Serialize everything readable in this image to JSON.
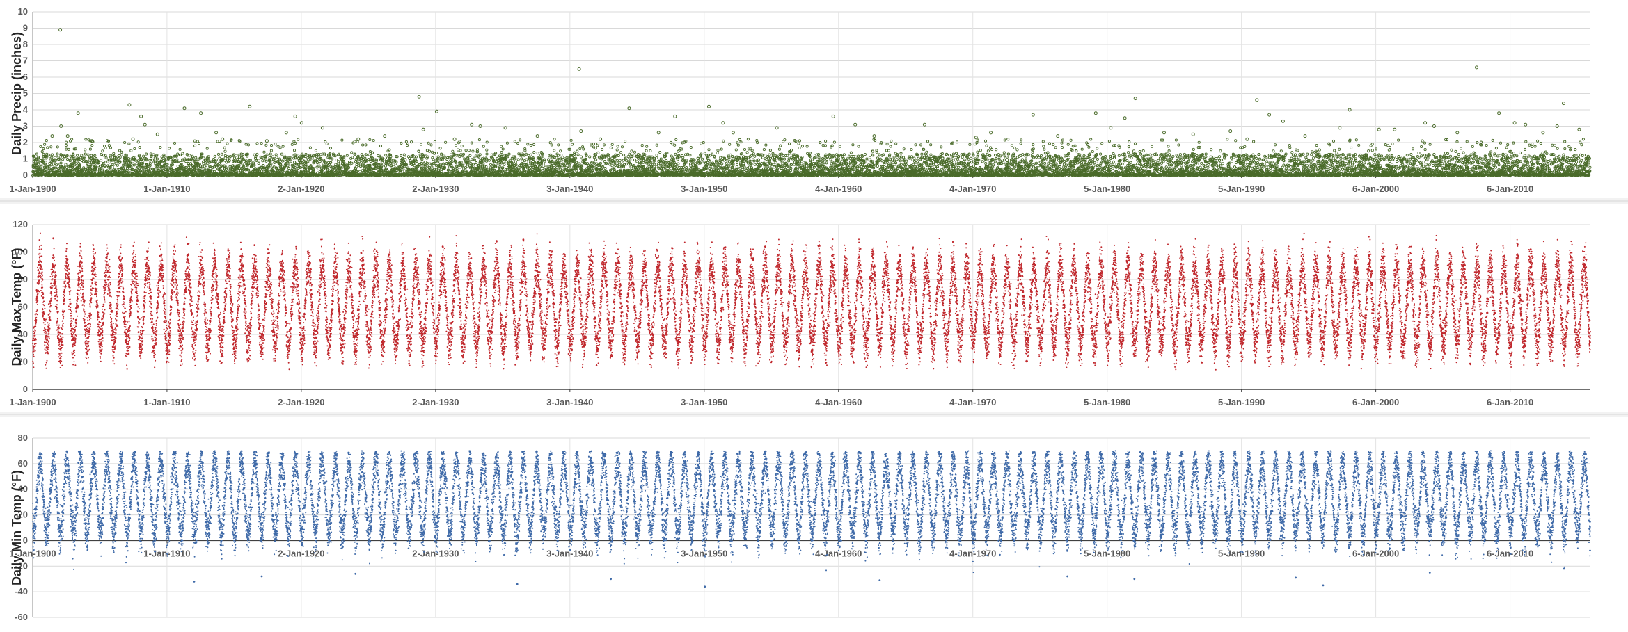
{
  "chart_data": [
    {
      "type": "scatter",
      "ylabel": "Daily Precip (inches)",
      "ylim": [
        0,
        10
      ],
      "yticks": [
        0,
        1,
        2,
        3,
        4,
        5,
        6,
        7,
        8,
        9,
        10
      ],
      "x_tick_labels": [
        "1-Jan-1900",
        "1-Jan-1910",
        "2-Jan-1920",
        "2-Jan-1930",
        "3-Jan-1940",
        "3-Jan-1950",
        "4-Jan-1960",
        "4-Jan-1970",
        "5-Jan-1980",
        "5-Jan-1990",
        "6-Jan-2000",
        "6-Jan-2010"
      ],
      "x_tick_dates": [
        "1900-01-01",
        "1910-01-01",
        "1920-01-02",
        "1930-01-02",
        "1940-01-03",
        "1950-01-03",
        "1960-01-04",
        "1970-01-04",
        "1980-01-05",
        "1990-01-05",
        "2000-01-06",
        "2010-01-06"
      ],
      "xlim": [
        "1900-01-01",
        "2015-12-31"
      ],
      "x_axis_at": 0,
      "grid": true,
      "marker_color": "#4a6b2a",
      "marker": "open-circle",
      "series": [
        {
          "points": [
            [
              "1902-01-20",
              8.9
            ],
            [
              "1901-06-15",
              2.4
            ],
            [
              "1902-02-10",
              3.0
            ],
            [
              "1902-08-10",
              2.4
            ],
            [
              "1903-05-20",
              3.8
            ],
            [
              "1904-06-01",
              2.1
            ],
            [
              "1907-03-15",
              4.3
            ],
            [
              "1907-06-20",
              2.2
            ],
            [
              "1908-01-25",
              3.6
            ],
            [
              "1908-05-10",
              3.1
            ],
            [
              "1909-04-18",
              2.5
            ],
            [
              "1911-04-20",
              4.1
            ],
            [
              "1912-07-10",
              3.8
            ],
            [
              "1913-09-01",
              2.6
            ],
            [
              "1914-02-20",
              2.2
            ],
            [
              "1916-03-01",
              4.2
            ],
            [
              "1917-06-10",
              2.1
            ],
            [
              "1918-11-20",
              2.6
            ],
            [
              "1919-07-20",
              3.6
            ],
            [
              "1920-01-10",
              3.2
            ],
            [
              "1921-08-01",
              2.9
            ],
            [
              "1924-04-01",
              2.2
            ],
            [
              "1926-03-20",
              2.4
            ],
            [
              "1928-10-10",
              4.8
            ],
            [
              "1929-02-01",
              2.8
            ],
            [
              "1930-02-01",
              3.9
            ],
            [
              "1931-06-01",
              2.2
            ],
            [
              "1932-09-10",
              3.1
            ],
            [
              "1933-05-01",
              3.0
            ],
            [
              "1935-03-15",
              2.9
            ],
            [
              "1937-08-01",
              2.4
            ],
            [
              "1940-09-10",
              6.5
            ],
            [
              "1940-11-01",
              2.7
            ],
            [
              "1942-04-10",
              2.2
            ],
            [
              "1944-06-01",
              4.1
            ],
            [
              "1946-08-10",
              2.6
            ],
            [
              "1947-11-01",
              3.6
            ],
            [
              "1950-05-10",
              4.2
            ],
            [
              "1951-06-01",
              3.2
            ],
            [
              "1952-03-01",
              2.6
            ],
            [
              "1955-06-01",
              2.9
            ],
            [
              "1959-08-15",
              3.6
            ],
            [
              "1961-04-01",
              3.1
            ],
            [
              "1962-09-01",
              2.4
            ],
            [
              "1966-06-01",
              3.1
            ],
            [
              "1970-04-01",
              2.3
            ],
            [
              "1971-05-10",
              2.6
            ],
            [
              "1974-07-01",
              3.7
            ],
            [
              "1976-05-01",
              2.4
            ],
            [
              "1979-03-01",
              3.8
            ],
            [
              "1980-04-10",
              2.9
            ],
            [
              "1981-05-01",
              3.5
            ],
            [
              "1982-02-10",
              4.7
            ],
            [
              "1984-04-01",
              2.6
            ],
            [
              "1986-06-01",
              2.5
            ],
            [
              "1989-03-10",
              2.7
            ],
            [
              "1990-06-10",
              2.2
            ],
            [
              "1991-03-01",
              4.6
            ],
            [
              "1992-02-01",
              3.7
            ],
            [
              "1993-02-10",
              3.3
            ],
            [
              "1994-10-01",
              2.4
            ],
            [
              "1997-05-01",
              2.9
            ],
            [
              "1998-01-25",
              4.0
            ],
            [
              "2000-04-01",
              2.8
            ],
            [
              "2001-06-01",
              2.8
            ],
            [
              "2003-09-10",
              3.2
            ],
            [
              "2004-05-10",
              3.0
            ],
            [
              "2006-02-01",
              2.6
            ],
            [
              "2007-07-10",
              6.6
            ],
            [
              "2009-03-10",
              3.8
            ],
            [
              "2010-05-10",
              3.2
            ],
            [
              "2011-03-01",
              3.1
            ],
            [
              "2012-06-20",
              2.6
            ],
            [
              "2013-07-10",
              3.0
            ],
            [
              "2014-01-01",
              4.4
            ],
            [
              "2015-03-01",
              2.8
            ]
          ]
        }
      ]
    },
    {
      "type": "scatter",
      "ylabel": "Daily Max Temp (°F)",
      "ylim": [
        0,
        120
      ],
      "yticks": [
        0,
        20,
        40,
        60,
        80,
        100,
        120
      ],
      "x_tick_labels": [
        "1-Jan-1900",
        "1-Jan-1910",
        "2-Jan-1920",
        "2-Jan-1930",
        "3-Jan-1940",
        "3-Jan-1950",
        "4-Jan-1960",
        "4-Jan-1970",
        "5-Jan-1980",
        "5-Jan-1990",
        "6-Jan-2000",
        "6-Jan-2010"
      ],
      "x_tick_dates": [
        "1900-01-01",
        "1910-01-01",
        "1920-01-02",
        "1930-01-02",
        "1940-01-03",
        "1950-01-03",
        "1960-01-04",
        "1970-01-04",
        "1980-01-05",
        "1990-01-05",
        "2000-01-06",
        "2010-01-06"
      ],
      "xlim": [
        "1900-01-01",
        "2015-12-31"
      ],
      "x_axis_at": 0,
      "grid": true,
      "marker_color": "#c0282d",
      "seasonal_cycle": {
        "summer_center": 90,
        "winter_center": 32,
        "spread": 14,
        "record_min": 14
      },
      "series": [
        {
          "extremes": [
            [
              "1901-07-15",
              110
            ],
            [
              "1911-07-20",
              106
            ],
            [
              "1916-07-10",
              105
            ],
            [
              "1930-07-15",
              104
            ],
            [
              "1934-07-20",
              108
            ],
            [
              "1936-07-15",
              109
            ],
            [
              "1947-08-10",
              103
            ],
            [
              "1954-07-20",
              104
            ],
            [
              "1990-07-10",
              103
            ],
            [
              "2011-07-20",
              102
            ]
          ]
        }
      ]
    },
    {
      "type": "scatter",
      "ylabel": "Daily Min Temp (°F)",
      "ylim": [
        -60,
        80
      ],
      "yticks": [
        -60,
        -40,
        -20,
        0,
        20,
        40,
        60,
        80
      ],
      "x_tick_labels": [
        "1-Jan-1900",
        "1-Jan-1910",
        "2-Jan-1920",
        "2-Jan-1930",
        "3-Jan-1940",
        "3-Jan-1950",
        "4-Jan-1960",
        "4-Jan-1970",
        "5-Jan-1980",
        "5-Jan-1990",
        "6-Jan-2000",
        "6-Jan-2010"
      ],
      "x_tick_dates": [
        "1900-01-01",
        "1910-01-01",
        "1920-01-02",
        "1930-01-02",
        "1940-01-03",
        "1950-01-03",
        "1960-01-04",
        "1970-01-04",
        "1980-01-05",
        "1990-01-05",
        "2000-01-06",
        "2010-01-06"
      ],
      "xlim": [
        "1900-01-01",
        "2015-12-31"
      ],
      "x_axis_at": 0,
      "grid": true,
      "marker_color": "#3f6aa8",
      "seasonal_cycle": {
        "summer_center": 62,
        "winter_center": 5,
        "spread": 14,
        "record_max": 70
      },
      "series": [
        {
          "extremes": [
            [
              "1912-01-10",
              -32
            ],
            [
              "1917-01-20",
              -28
            ],
            [
              "1924-01-15",
              -26
            ],
            [
              "1936-02-01",
              -34
            ],
            [
              "1943-01-20",
              -30
            ],
            [
              "1950-01-20",
              -36
            ],
            [
              "1963-01-25",
              -31
            ],
            [
              "1977-01-20",
              -28
            ],
            [
              "1982-01-15",
              -30
            ],
            [
              "1994-01-20",
              -29
            ],
            [
              "1996-02-05",
              -35
            ],
            [
              "2004-01-15",
              -25
            ],
            [
              "2014-01-10",
              -22
            ]
          ]
        }
      ]
    }
  ]
}
